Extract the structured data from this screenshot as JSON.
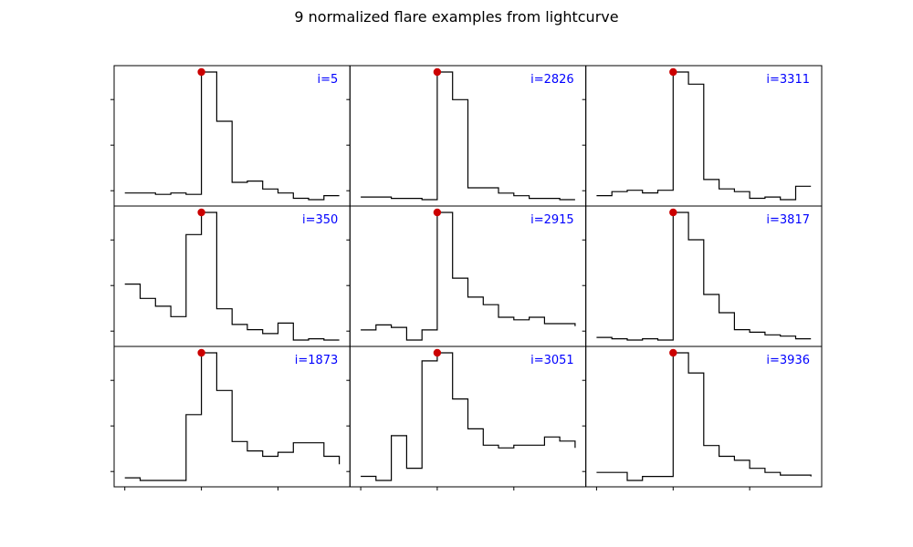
{
  "chart_data": {
    "type": "line",
    "title": "9 normalized flare examples from lightcurve",
    "layout": "3x3 grid of step plots",
    "shared_x": true,
    "x_ticks_shown": "bottom row only, unlabeled",
    "y_ticks_shown": "unlabeled",
    "peak_marker_color": "#cc0000",
    "line_color": "#000000",
    "label_color": "#0000ff",
    "panels": [
      {
        "label": "i=5",
        "x": [
          0,
          1,
          2,
          3,
          4,
          5,
          6,
          7,
          8,
          9,
          10,
          11,
          12,
          13,
          14
        ],
        "y": [
          0.09,
          0.09,
          0.08,
          0.09,
          0.08,
          1.0,
          0.63,
          0.17,
          0.18,
          0.12,
          0.09,
          0.05,
          0.04,
          0.07,
          0.07
        ],
        "peak_index": 5
      },
      {
        "label": "i=2826",
        "x": [
          0,
          1,
          2,
          3,
          4,
          5,
          6,
          7,
          8,
          9,
          10,
          11,
          12,
          13,
          14
        ],
        "y": [
          0.05,
          0.05,
          0.04,
          0.04,
          0.03,
          1.0,
          0.79,
          0.12,
          0.12,
          0.08,
          0.06,
          0.04,
          0.04,
          0.03,
          0.03
        ],
        "peak_index": 5
      },
      {
        "label": "i=3311",
        "x": [
          0,
          1,
          2,
          3,
          4,
          5,
          6,
          7,
          8,
          9,
          10,
          11,
          12,
          13,
          14
        ],
        "y": [
          0.08,
          0.11,
          0.12,
          0.1,
          0.12,
          1.0,
          0.91,
          0.2,
          0.13,
          0.11,
          0.06,
          0.07,
          0.05,
          0.15,
          0.15
        ],
        "peak_index": 5
      },
      {
        "label": "i=350",
        "x": [
          0,
          1,
          2,
          3,
          4,
          5,
          6,
          7,
          8,
          9,
          10,
          11,
          12,
          13,
          14
        ],
        "y": [
          0.45,
          0.34,
          0.28,
          0.2,
          0.83,
          1.0,
          0.26,
          0.14,
          0.1,
          0.07,
          0.15,
          0.02,
          0.03,
          0.02,
          0.02
        ],
        "peak_index": 5
      },
      {
        "label": "i=2915",
        "x": [
          0,
          1,
          2,
          3,
          4,
          5,
          6,
          7,
          8,
          9,
          10,
          11,
          12,
          13,
          14
        ],
        "y": [
          0.07,
          0.11,
          0.09,
          -0.01,
          0.07,
          1.0,
          0.48,
          0.33,
          0.27,
          0.17,
          0.15,
          0.17,
          0.12,
          0.12,
          0.1
        ],
        "peak_index": 5
      },
      {
        "label": "i=3817",
        "x": [
          0,
          1,
          2,
          3,
          4,
          5,
          6,
          7,
          8,
          9,
          10,
          11,
          12,
          13,
          14
        ],
        "y": [
          0.04,
          0.03,
          0.02,
          0.03,
          0.02,
          1.0,
          0.79,
          0.37,
          0.23,
          0.1,
          0.08,
          0.06,
          0.05,
          0.03,
          0.03
        ],
        "peak_index": 5
      },
      {
        "label": "i=1873",
        "x": [
          0,
          1,
          2,
          3,
          4,
          5,
          6,
          7,
          8,
          9,
          10,
          11,
          12,
          13,
          14
        ],
        "y": [
          0.07,
          0.05,
          0.05,
          0.05,
          0.54,
          1.0,
          0.72,
          0.34,
          0.27,
          0.23,
          0.26,
          0.33,
          0.33,
          0.23,
          0.17
        ],
        "peak_index": 5
      },
      {
        "label": "i=3051",
        "x": [
          0,
          1,
          2,
          3,
          4,
          5,
          6,
          7,
          8,
          9,
          10,
          11,
          12,
          13,
          14
        ],
        "y": [
          0.09,
          0.06,
          0.39,
          0.15,
          0.94,
          1.0,
          0.66,
          0.44,
          0.32,
          0.3,
          0.32,
          0.32,
          0.38,
          0.35,
          0.3
        ],
        "peak_index": 5
      },
      {
        "label": "i=3936",
        "x": [
          0,
          1,
          2,
          3,
          4,
          5,
          6,
          7,
          8,
          9,
          10,
          11,
          12,
          13,
          14
        ],
        "y": [
          0.11,
          0.11,
          0.05,
          0.08,
          0.08,
          1.0,
          0.85,
          0.31,
          0.23,
          0.2,
          0.14,
          0.11,
          0.09,
          0.09,
          0.08
        ],
        "peak_index": 5
      }
    ]
  }
}
